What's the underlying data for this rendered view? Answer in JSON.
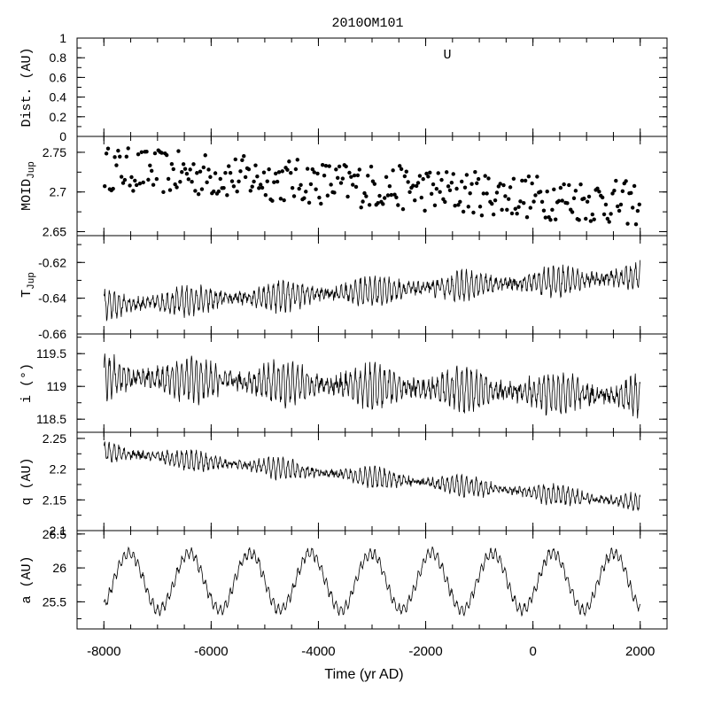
{
  "figure": {
    "title": "2010OM101",
    "xlabel": "Time (yr AD)",
    "xticks": [
      -8000,
      -6000,
      -4000,
      -2000,
      0,
      2000
    ],
    "xlim": [
      -8500,
      2500
    ]
  },
  "chart_data": [
    {
      "type": "scatter",
      "panel": "Dist.",
      "ylabel": "Dist. (AU)",
      "ylim": [
        0,
        1
      ],
      "yticks": [
        0,
        0.2,
        0.4,
        0.6,
        0.8,
        1
      ],
      "annotation": "U",
      "points": []
    },
    {
      "type": "scatter",
      "panel": "MOID_Jup",
      "ylabel": "MOID",
      "ylabel_sub": "Jup",
      "ylim": [
        2.645,
        2.77
      ],
      "yticks": [
        2.65,
        2.7,
        2.75
      ],
      "trend": {
        "x_start": -8000,
        "x_end": 2000,
        "y_start": 2.73,
        "y_end": 2.685
      },
      "spread": 0.028,
      "n_points": 320,
      "marker": "filled-circle"
    },
    {
      "type": "line",
      "panel": "T_Jup",
      "ylabel": "T",
      "ylabel_sub": "Jup",
      "ylim": [
        -0.66,
        -0.605
      ],
      "yticks": [
        -0.66,
        -0.64,
        -0.62
      ],
      "trend": {
        "x_start": -8000,
        "x_end": 2000,
        "y_start": -0.644,
        "y_end": -0.628
      },
      "amplitude": 0.0075,
      "period_yr": 90
    },
    {
      "type": "line",
      "panel": "i",
      "ylabel": "i (°)",
      "ylim": [
        118.3,
        119.8
      ],
      "yticks": [
        118.5,
        119,
        119.5
      ],
      "trend": {
        "x_start": -8000,
        "x_end": 2000,
        "y_start": 119.15,
        "y_end": 118.85
      },
      "amplitude": 0.3,
      "period_yr": 90
    },
    {
      "type": "line",
      "panel": "q",
      "ylabel": "q (AU)",
      "ylim": [
        2.1,
        2.26
      ],
      "yticks": [
        2.1,
        2.15,
        2.2,
        2.25
      ],
      "trend": {
        "x_start": -8000,
        "x_end": 2000,
        "y_start": 2.228,
        "y_end": 2.145
      },
      "amplitude": 0.015,
      "period_yr": 90
    },
    {
      "type": "line",
      "panel": "a",
      "ylabel": "a (AU)",
      "ylim": [
        25.1,
        26.55
      ],
      "yticks": [
        25.5,
        26,
        26.5
      ],
      "cycle": {
        "mean": 25.8,
        "amplitude": 0.42,
        "period_yr": 1130
      },
      "step_period_yr": 90,
      "step_amplitude": 0.07
    }
  ]
}
